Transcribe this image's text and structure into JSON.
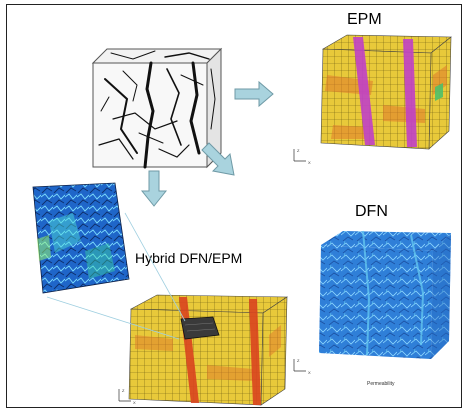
{
  "labels": {
    "epm": "EPM",
    "dfn": "DFN",
    "hybrid": "Hybrid DFN/EPM",
    "permeability": "Permeability"
  },
  "axis_labels": {
    "epm_z": "Z",
    "epm_x": "X",
    "dfn_z": "Z",
    "dfn_x": "X",
    "hybrid_z": "Z",
    "hybrid_x": "X"
  },
  "colors": {
    "background": "#ffffff",
    "grid_yellow": "#e8c93a",
    "grid_orange": "#e07a2a",
    "fracture_magenta": "#c040c8",
    "fracture_red": "#d9441f",
    "dfn_blue": "#2f7fd8",
    "dfn_light": "#63c6f0",
    "arrow": "#a9d3de",
    "arrow_stroke": "#6f9aa6"
  }
}
